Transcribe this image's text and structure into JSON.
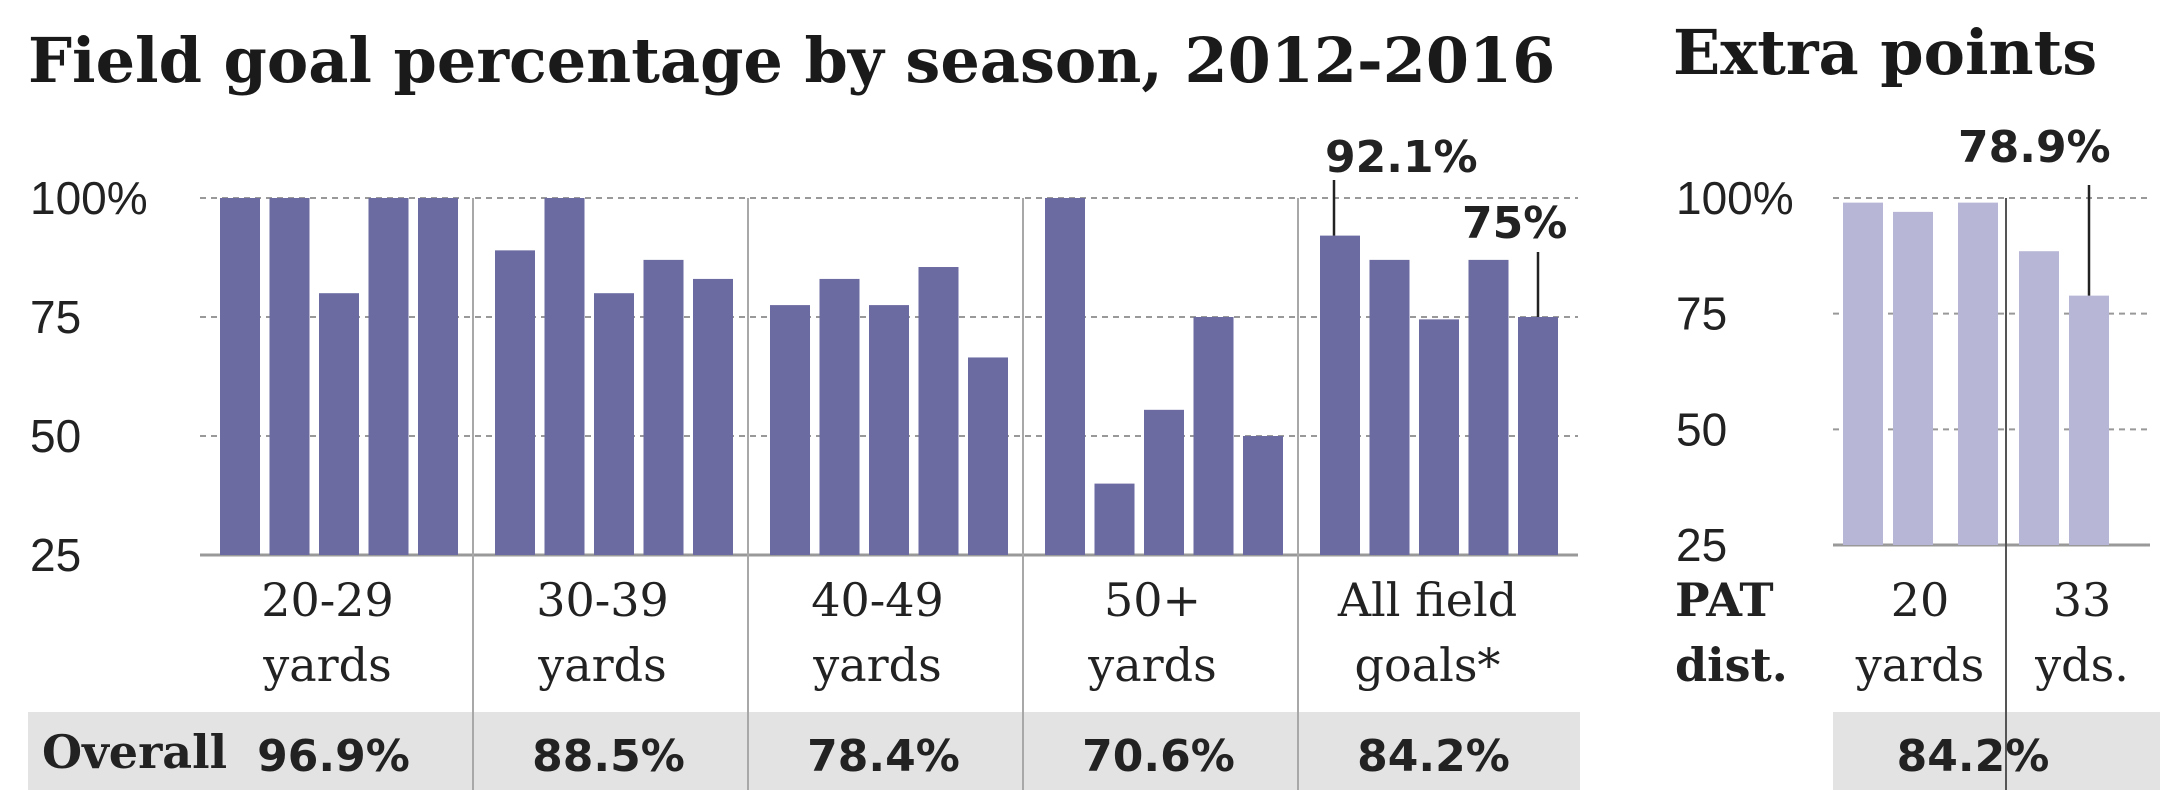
{
  "chart_data": [
    {
      "type": "bar",
      "title": "Field goal percentage by season, 2012-2016",
      "ylim": [
        25,
        100
      ],
      "yticks": [
        "100%",
        "75",
        "50",
        "25"
      ],
      "bar_color": "#6b6aa1",
      "categories": [
        {
          "label": [
            "20-29",
            "yards"
          ],
          "values": [
            100,
            100,
            80,
            100,
            100
          ],
          "overall": "96.9%"
        },
        {
          "label": [
            "30-39",
            "yards"
          ],
          "values": [
            89,
            100,
            80,
            87,
            83
          ],
          "overall": "88.5%"
        },
        {
          "label": [
            "40-49",
            "yards"
          ],
          "values": [
            77.5,
            83,
            77.5,
            85.5,
            66.5
          ],
          "overall": "78.4%"
        },
        {
          "label": [
            "50+",
            "yards"
          ],
          "values": [
            100,
            40,
            55.5,
            75,
            50
          ],
          "overall": "70.6%"
        },
        {
          "label": [
            "All field",
            "goals*"
          ],
          "values": [
            92.1,
            87,
            74.5,
            87,
            75
          ],
          "overall": "84.2%"
        }
      ],
      "annotations": [
        "92.1%",
        "75%"
      ],
      "overall_label": "Overall"
    },
    {
      "type": "bar",
      "title": "Extra points",
      "ylim": [
        25,
        100
      ],
      "yticks": [
        "100%",
        "75",
        "50",
        "25"
      ],
      "bar_color": "#b8b6d6",
      "categories": [
        {
          "label": [
            "20",
            "yards"
          ],
          "values": [
            99,
            97,
            99
          ]
        },
        {
          "label": [
            "33",
            "yds."
          ],
          "values": [
            88.5,
            78.9
          ]
        }
      ],
      "annotation": "78.9%",
      "axis_label": [
        "PAT",
        "dist."
      ],
      "overall": "84.2%"
    }
  ]
}
